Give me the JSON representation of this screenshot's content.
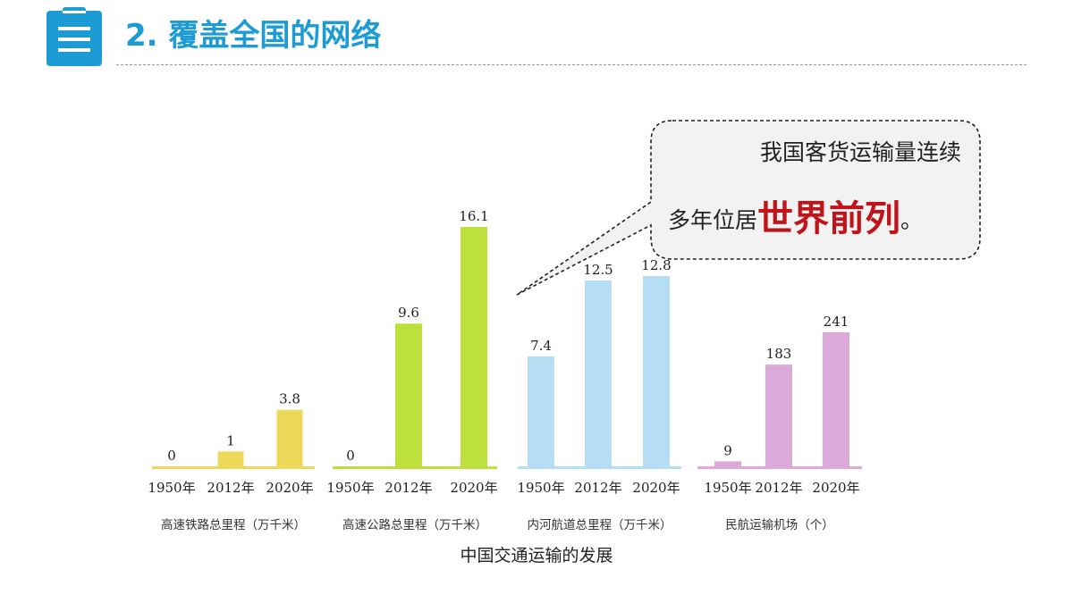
{
  "header": {
    "title": "2. 覆盖全国的网络",
    "icon": "clipboard-list-icon",
    "accent_color": "#1c9bd4"
  },
  "callout": {
    "line1": "我国客货运输量连续",
    "line2_prefix": "多年位居",
    "line2_emphasis": "世界前列",
    "line2_suffix": "。",
    "emphasis_color": "#c0141a"
  },
  "chart_data": {
    "type": "bar",
    "title": "",
    "caption": "中国交通运输的发展",
    "groups": [
      {
        "name": "高速铁路总里程（万千米）",
        "color": "#ecd95a",
        "categories": [
          "1950年",
          "2012年",
          "2020年"
        ],
        "values": [
          0,
          1,
          3.8
        ],
        "labels": [
          "0",
          "1",
          "3.8"
        ]
      },
      {
        "name": "高速公路总里程（万千米）",
        "color": "#bde03c",
        "categories": [
          "1950年",
          "2012年",
          "2020年"
        ],
        "values": [
          0,
          9.6,
          16.1
        ],
        "labels": [
          "0",
          "9.6",
          "16.1"
        ]
      },
      {
        "name": "内河航道总里程（万千米）",
        "color": "#b5ddf3",
        "categories": [
          "1950年",
          "2012年",
          "2020年"
        ],
        "values": [
          7.4,
          12.5,
          12.8
        ],
        "labels": [
          "7.4",
          "12.5",
          "12.8"
        ]
      },
      {
        "name": "民航运输机场（个）",
        "color": "#dcaad9",
        "categories": [
          "1950年",
          "2012年",
          "2020年"
        ],
        "values": [
          9,
          183,
          241
        ],
        "labels": [
          "9",
          "183",
          "241"
        ]
      }
    ],
    "grid": false,
    "legend": "none"
  }
}
